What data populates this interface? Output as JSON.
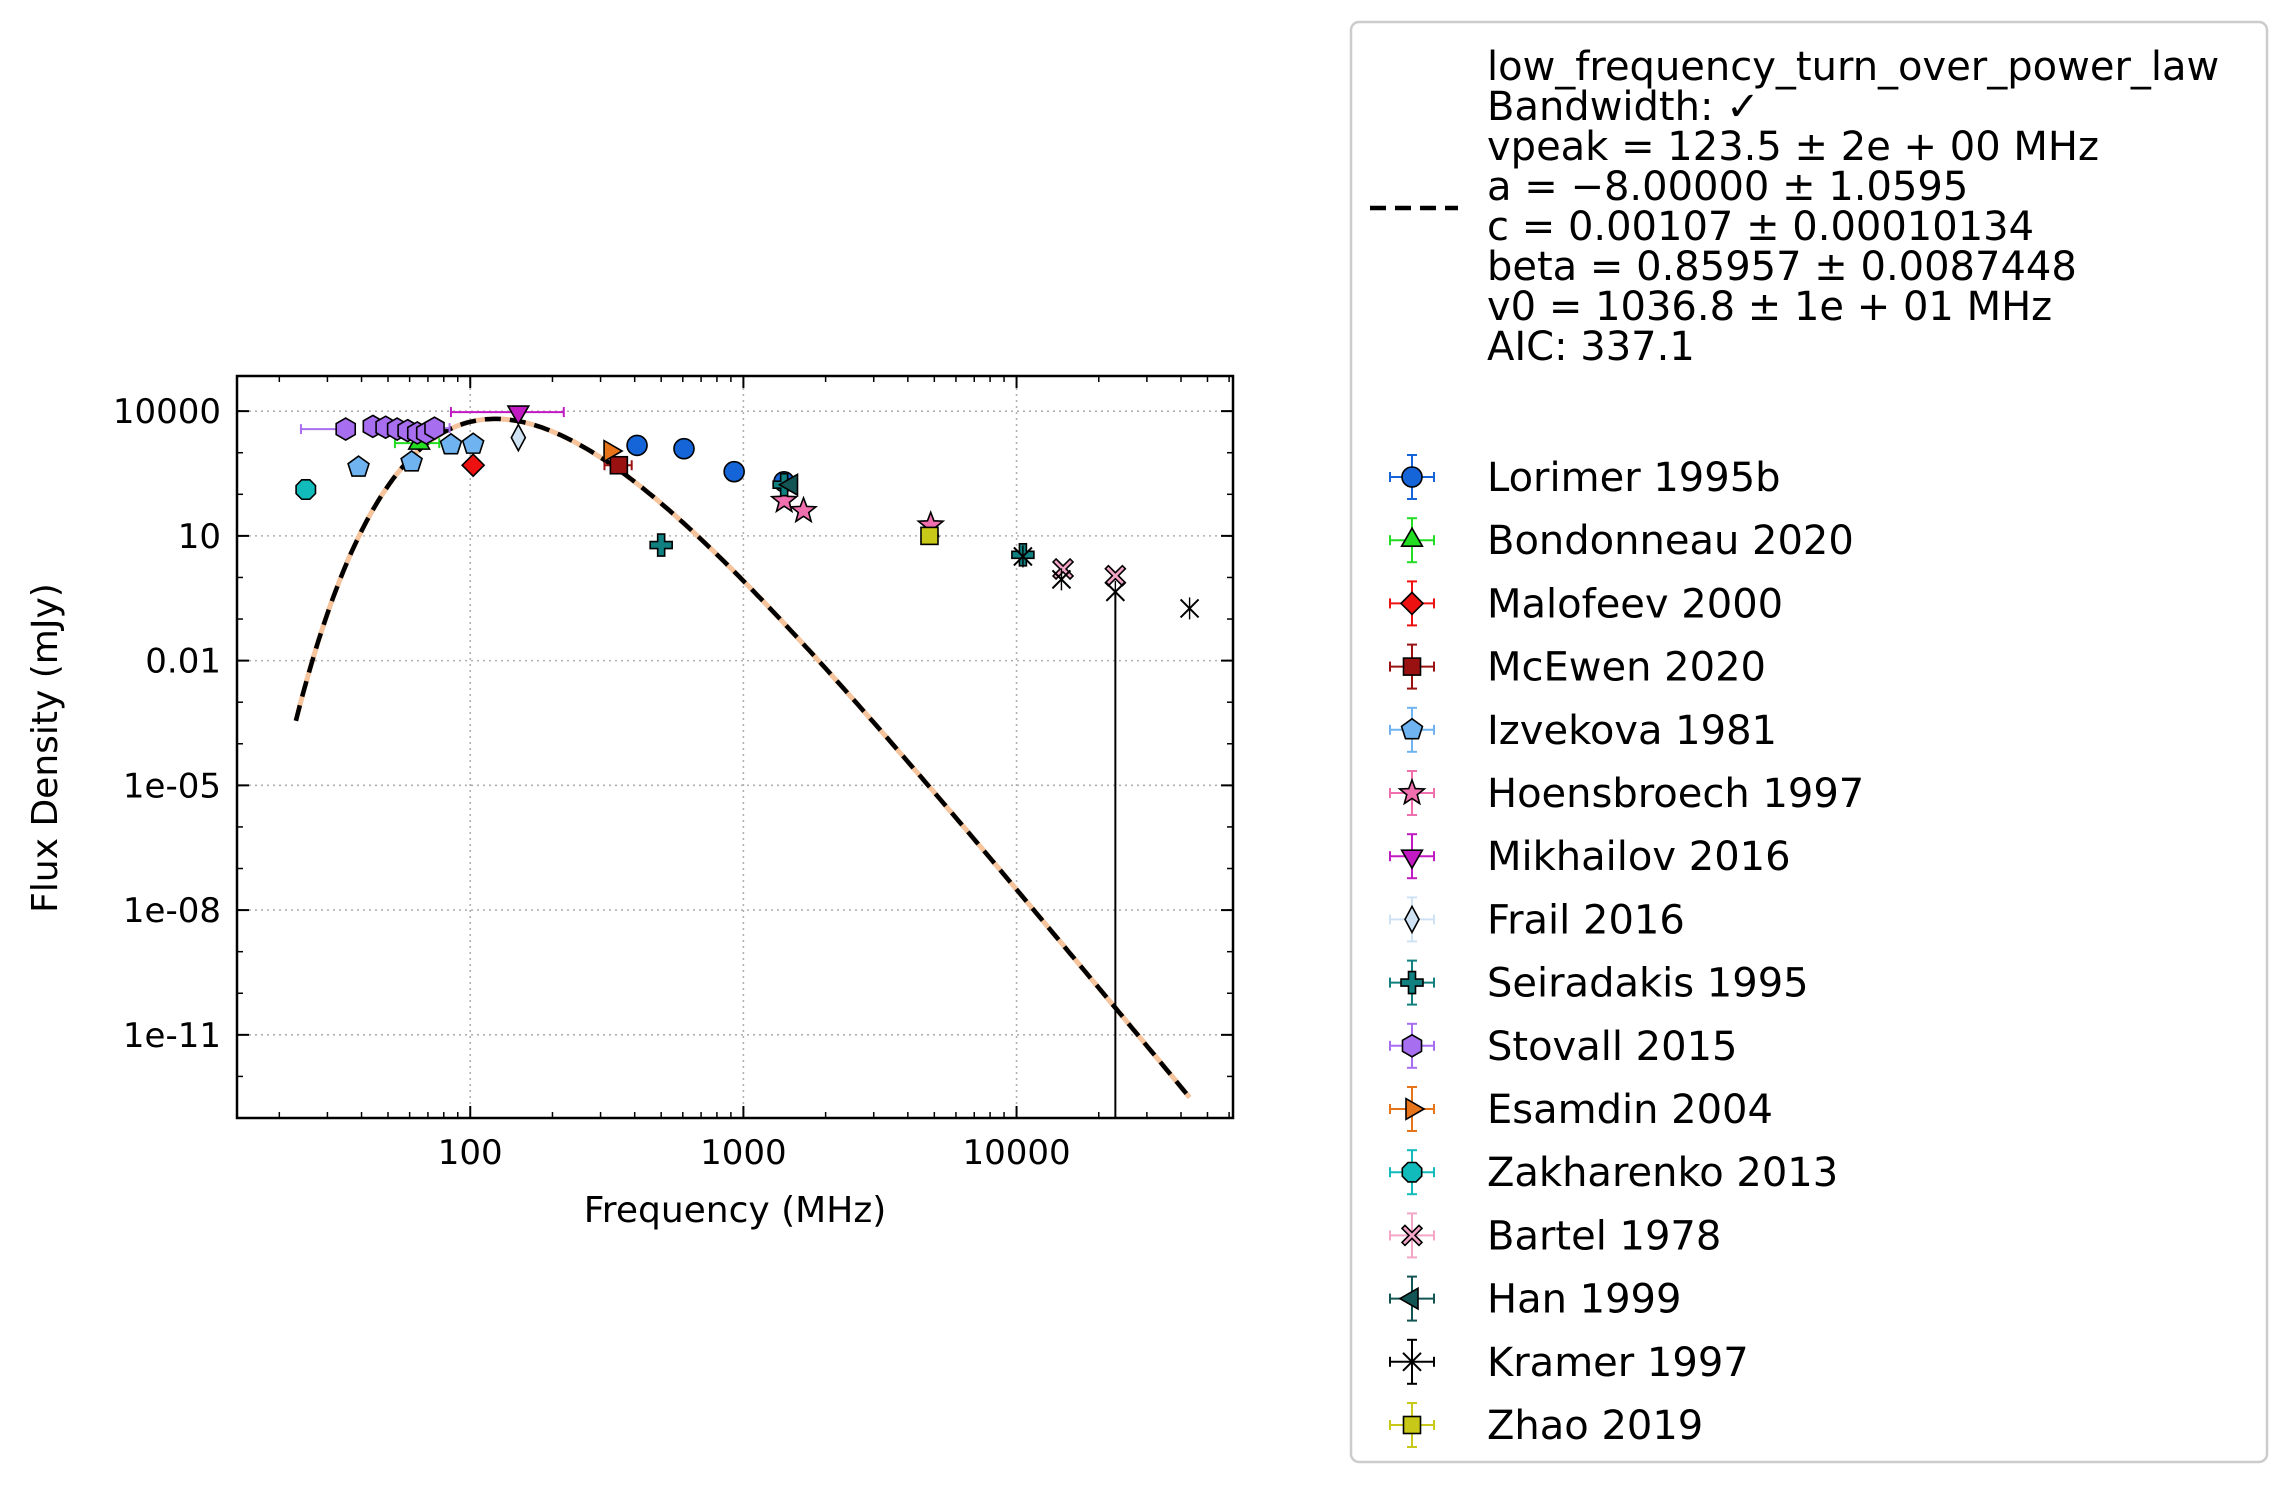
{
  "chart_data": {
    "type": "scatter",
    "xlabel": "Frequency (MHz)",
    "ylabel": "Flux Density (mJy)",
    "xscale": "log",
    "yscale": "log",
    "xlim": [
      14,
      62000
    ],
    "ylim": [
      1e-13,
      70000
    ],
    "x_ticks": [
      {
        "value": 100,
        "label": "100"
      },
      {
        "value": 1000,
        "label": "1000"
      },
      {
        "value": 10000,
        "label": "10000"
      }
    ],
    "y_ticks": [
      {
        "value": 10000,
        "label": "10000"
      },
      {
        "value": 10,
        "label": "10"
      },
      {
        "value": 0.01,
        "label": "0.01"
      },
      {
        "value": 1e-05,
        "label": "1e-05"
      },
      {
        "value": 1e-08,
        "label": "1e-08"
      },
      {
        "value": 1e-11,
        "label": "1e-11"
      }
    ],
    "grid": true,
    "legend_position": "outside-right",
    "fit": {
      "model": "low_frequency_turn_over_power_law",
      "color": "#000000",
      "underlay_color": "#f5c49c",
      "linestyle": "dashed",
      "x_range": [
        23,
        43000
      ],
      "legend_lines": [
        "low_frequency_turn_over_power_law",
        "Bandwidth: ✓",
        "vpeak = 123.5 ± 2e + 00 MHz",
        "a = −8.00000 ± 1.0595",
        "c = 0.00107 ± 0.00010134",
        "beta = 0.85957 ± 0.0087448",
        "v0 = 1036.8 ± 1e + 01 MHz",
        "AIC: 337.1"
      ],
      "params": {
        "vpeak": 123.5,
        "a": -8.0,
        "c": 0.00107,
        "beta": 0.85957,
        "v0": 1036.8
      }
    },
    "series": [
      {
        "name": "Lorimer 1995b",
        "marker": "circle",
        "color": "#1565d8",
        "points": [
          {
            "x": 408,
            "y": 1500
          },
          {
            "x": 606,
            "y": 1250
          },
          {
            "x": 925,
            "y": 350
          },
          {
            "x": 1408,
            "y": 200
          }
        ]
      },
      {
        "name": "Bondonneau 2020",
        "marker": "triangle-up",
        "color": "#22dd22",
        "points": [
          {
            "x": 65,
            "y": 1700,
            "xerr": [
              12,
              12
            ]
          }
        ]
      },
      {
        "name": "Malofeev 2000",
        "marker": "diamond",
        "color": "#ee1111",
        "points": [
          {
            "x": 102.5,
            "y": 500
          }
        ]
      },
      {
        "name": "McEwen 2020",
        "marker": "square",
        "color": "#991111",
        "points": [
          {
            "x": 350,
            "y": 500,
            "xerr": [
              40,
              40
            ]
          }
        ]
      },
      {
        "name": "Izvekova 1981",
        "marker": "pentagon",
        "color": "#6fb4f0",
        "points": [
          {
            "x": 39,
            "y": 450
          },
          {
            "x": 61,
            "y": 600
          },
          {
            "x": 85,
            "y": 1550
          },
          {
            "x": 102.5,
            "y": 1600
          }
        ]
      },
      {
        "name": "Hoensbroech 1997",
        "marker": "star",
        "color": "#f06fae",
        "points": [
          {
            "x": 1410,
            "y": 70
          },
          {
            "x": 1660,
            "y": 40
          },
          {
            "x": 4850,
            "y": 18
          }
        ]
      },
      {
        "name": "Mikhailov 2016",
        "marker": "triangle-down",
        "color": "#c21ac2",
        "points": [
          {
            "x": 150,
            "y": 9500,
            "xerr": [
              65,
              70
            ]
          }
        ]
      },
      {
        "name": "Frail 2016",
        "marker": "thin-diamond",
        "color": "#cfe2f3",
        "points": [
          {
            "x": 150,
            "y": 2300
          }
        ]
      },
      {
        "name": "Seiradakis 1995",
        "marker": "plus",
        "color": "#118080",
        "points": [
          {
            "x": 500,
            "y": 6
          },
          {
            "x": 1410,
            "y": 170
          },
          {
            "x": 10550,
            "y": 3.5
          }
        ]
      },
      {
        "name": "Stovall 2015",
        "marker": "hexagon",
        "color": "#a86ef0",
        "points": [
          {
            "x": 35,
            "y": 3700,
            "xerr": [
              11,
              0
            ]
          },
          {
            "x": 44,
            "y": 4300
          },
          {
            "x": 49,
            "y": 4100
          },
          {
            "x": 54,
            "y": 3700
          },
          {
            "x": 59,
            "y": 3400
          },
          {
            "x": 64,
            "y": 3000
          },
          {
            "x": 69,
            "y": 3000
          },
          {
            "x": 74,
            "y": 3900,
            "xerr": [
              0,
              10
            ]
          }
        ]
      },
      {
        "name": "Esamdin 2004",
        "marker": "triangle-right",
        "color": "#e8741a",
        "points": [
          {
            "x": 325,
            "y": 1100
          }
        ]
      },
      {
        "name": "Zakharenko 2013",
        "marker": "octagon",
        "color": "#11bbbb",
        "points": [
          {
            "x": 25,
            "y": 130
          }
        ]
      },
      {
        "name": "Bartel 1978",
        "marker": "x-filled",
        "color": "#f4a6c8",
        "points": [
          {
            "x": 14800,
            "y": 1.6
          },
          {
            "x": 23000,
            "y": 1.1
          }
        ]
      },
      {
        "name": "Han 1999",
        "marker": "triangle-left",
        "color": "#135454",
        "points": [
          {
            "x": 1500,
            "y": 170
          }
        ]
      },
      {
        "name": "Kramer 1997",
        "marker": "tri-x",
        "color": "#000000",
        "points": [
          {
            "x": 10550,
            "y": 3.2
          },
          {
            "x": 14600,
            "y": 0.9
          },
          {
            "x": 23000,
            "y": 0.45,
            "yerr_low_to": 1e-13
          },
          {
            "x": 43000,
            "y": 0.18
          }
        ]
      },
      {
        "name": "Zhao 2019",
        "marker": "square",
        "color": "#c8c818",
        "points": [
          {
            "x": 4800,
            "y": 10
          }
        ]
      }
    ]
  }
}
